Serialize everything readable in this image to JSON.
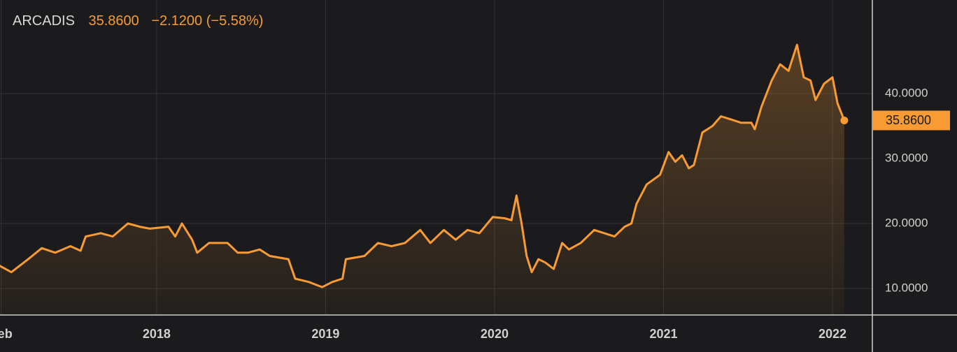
{
  "chart_data": {
    "type": "line",
    "title": "ARCADIS",
    "last_label": "35.8600",
    "change": "−2.1200 (−5.58%)",
    "color": "#f89b34",
    "area": true,
    "grid": true,
    "x": [
      2017.07,
      2017.14,
      2017.24,
      2017.32,
      2017.4,
      2017.49,
      2017.55,
      2017.58,
      2017.67,
      2017.74,
      2017.83,
      2017.9,
      2017.96,
      2018.07,
      2018.11,
      2018.15,
      2018.21,
      2018.24,
      2018.31,
      2018.42,
      2018.48,
      2018.54,
      2018.61,
      2018.67,
      2018.78,
      2018.82,
      2018.9,
      2018.98,
      2019.04,
      2019.1,
      2019.12,
      2019.23,
      2019.31,
      2019.39,
      2019.47,
      2019.56,
      2019.62,
      2019.7,
      2019.77,
      2019.84,
      2019.91,
      2019.99,
      2020.06,
      2020.1,
      2020.13,
      2020.16,
      2020.19,
      2020.22,
      2020.26,
      2020.3,
      2020.35,
      2020.4,
      2020.44,
      2020.51,
      2020.59,
      2020.65,
      2020.71,
      2020.77,
      2020.81,
      2020.84,
      2020.9,
      2020.98,
      2021.03,
      2021.07,
      2021.11,
      2021.15,
      2021.18,
      2021.23,
      2021.29,
      2021.34,
      2021.4,
      2021.46,
      2021.52,
      2021.54,
      2021.58,
      2021.64,
      2021.69,
      2021.74,
      2021.79,
      2021.83,
      2021.87,
      2021.9,
      2021.95,
      2022.0,
      2022.03,
      2022.07
    ],
    "values": [
      13.5,
      12.5,
      14.5,
      16.2,
      15.5,
      16.5,
      15.8,
      18,
      18.5,
      18,
      20,
      19.5,
      19.2,
      19.5,
      18,
      20,
      17.5,
      15.5,
      17,
      17,
      15.5,
      15.5,
      16,
      15,
      14.5,
      11.5,
      11,
      10.2,
      11,
      11.5,
      14.5,
      15,
      17,
      16.5,
      17,
      19,
      17,
      19,
      17.5,
      19,
      18.5,
      21,
      20.8,
      20.5,
      24.3,
      20,
      15,
      12.5,
      14.5,
      14,
      13,
      17,
      16,
      17,
      19,
      18.5,
      18,
      19.5,
      20,
      23,
      26,
      27.5,
      31,
      29.5,
      30.5,
      28.5,
      29,
      34,
      35,
      36.5,
      36,
      35.5,
      35.5,
      34.5,
      38,
      42,
      44.5,
      43.5,
      47.5,
      42.5,
      42,
      39,
      41.5,
      42.5,
      38.5,
      35.86
    ],
    "xlim": [
      2017.073,
      2022.236
    ],
    "xticks": [
      {
        "value": 2017.08,
        "label": "Feb"
      },
      2018,
      2019,
      2020,
      2021,
      2022
    ],
    "ylim": [
      6.02,
      54.4
    ],
    "yticks": [
      {
        "value": 10,
        "label": "10.0000"
      },
      {
        "value": 20,
        "label": "20.0000"
      },
      {
        "value": 30,
        "label": "30.0000"
      },
      {
        "value": 40,
        "label": "40.0000"
      }
    ]
  }
}
